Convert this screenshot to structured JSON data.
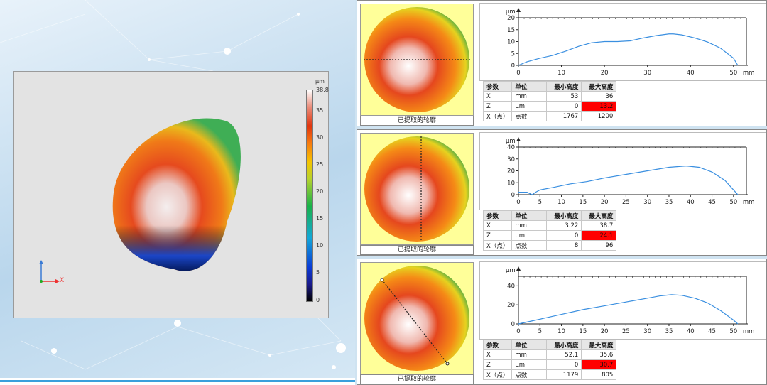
{
  "viewer_3d": {
    "colorbar_unit": "μm",
    "colorbar_ticks": [
      "38.8",
      "35",
      "30",
      "25",
      "20",
      "15",
      "10",
      "5",
      "0"
    ],
    "axis_x_label": "X"
  },
  "panels": [
    {
      "thumb_caption": "已提取的轮廓",
      "chart_unit": "μm",
      "table": {
        "headers": [
          "参数",
          "单位",
          "最小高度",
          "最大高度"
        ],
        "rows": [
          [
            "X",
            "mm",
            "53",
            "36"
          ],
          [
            "Z",
            "μm",
            "0",
            "13.2"
          ],
          [
            "X（点）",
            "点数",
            "1767",
            "1200"
          ]
        ]
      }
    },
    {
      "thumb_caption": "已提取的轮廓",
      "chart_unit": "μm",
      "table": {
        "headers": [
          "参数",
          "单位",
          "最小高度",
          "最大高度"
        ],
        "rows": [
          [
            "X",
            "mm",
            "3.22",
            "38.7"
          ],
          [
            "Z",
            "μm",
            "0",
            "24.1"
          ],
          [
            "X（点）",
            "点数",
            "8",
            "96"
          ]
        ]
      }
    },
    {
      "thumb_caption": "已提取的轮廓",
      "chart_unit": "μm",
      "table": {
        "headers": [
          "参数",
          "单位",
          "最小高度",
          "最大高度"
        ],
        "rows": [
          [
            "X",
            "mm",
            "52.1",
            "35.6"
          ],
          [
            "Z",
            "μm",
            "0",
            "30.7"
          ],
          [
            "X（点）",
            "点数",
            "1179",
            "805"
          ]
        ]
      }
    }
  ],
  "chart_data": [
    {
      "type": "line",
      "ylabel": "μm",
      "xlabel": "mm",
      "xlim": [
        0,
        53
      ],
      "ylim": [
        0,
        20
      ],
      "xticks": [
        0,
        10,
        20,
        30,
        40,
        50
      ],
      "yticks": [
        0,
        5,
        10,
        15,
        20
      ],
      "series": [
        {
          "x": [
            0,
            2,
            5,
            8,
            11,
            14,
            17,
            20,
            23,
            26,
            29,
            32,
            35,
            36,
            38,
            41,
            44,
            47,
            50,
            51
          ],
          "y": [
            0,
            1.5,
            3,
            4.2,
            6,
            8,
            9.5,
            10,
            10,
            10.3,
            11.5,
            12.5,
            13.2,
            13.2,
            12.8,
            11.5,
            9.8,
            7.2,
            3,
            0
          ]
        }
      ]
    },
    {
      "type": "line",
      "ylabel": "μm",
      "xlabel": "mm",
      "xlim": [
        0,
        53
      ],
      "ylim": [
        0,
        40
      ],
      "xticks": [
        0,
        5,
        10,
        15,
        20,
        25,
        30,
        35,
        40,
        45,
        50
      ],
      "yticks": [
        0,
        10,
        20,
        30,
        40
      ],
      "series": [
        {
          "x": [
            0,
            2,
            3.2,
            4,
            5,
            8,
            12,
            16,
            20,
            25,
            30,
            35,
            39,
            42,
            45,
            48,
            50,
            51
          ],
          "y": [
            2,
            2,
            0,
            2,
            4,
            6,
            9,
            11,
            14,
            17,
            20,
            23,
            24.1,
            23,
            19,
            12,
            4,
            0
          ]
        }
      ]
    },
    {
      "type": "line",
      "ylabel": "μm",
      "xlabel": "mm",
      "xlim": [
        0,
        53
      ],
      "ylim": [
        0,
        50
      ],
      "xticks": [
        0,
        5,
        10,
        15,
        20,
        25,
        30,
        35,
        40,
        45,
        50
      ],
      "yticks": [
        0,
        20,
        40
      ],
      "series": [
        {
          "x": [
            0,
            3,
            6,
            10,
            15,
            20,
            25,
            30,
            33,
            35.6,
            38,
            41,
            44,
            47,
            50,
            51
          ],
          "y": [
            0,
            3,
            6,
            10,
            15,
            19,
            23,
            27,
            29.5,
            30.7,
            30,
            27,
            22,
            14,
            4,
            0
          ]
        }
      ]
    }
  ]
}
